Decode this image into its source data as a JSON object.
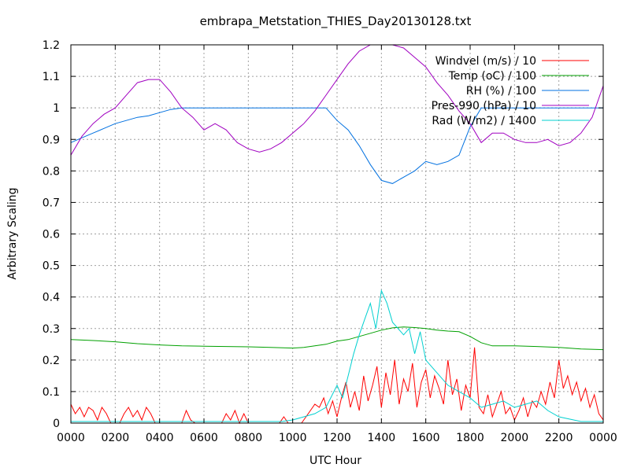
{
  "chart_data": {
    "type": "line",
    "title": "embrapa_Metstation_THIES_Day20130128.txt",
    "xlabel": "UTC Hour",
    "ylabel": "Arbitrary Scaling",
    "xlim": [
      0,
      24
    ],
    "ylim": [
      0,
      1.2
    ],
    "grid": true,
    "legend_position": "top-right",
    "x_ticks": [
      "0000",
      "0200",
      "0400",
      "0600",
      "0800",
      "1000",
      "1200",
      "1400",
      "1600",
      "1800",
      "2000",
      "2200",
      "0000"
    ],
    "y_ticks": [
      "0",
      "0.1",
      "0.2",
      "0.3",
      "0.4",
      "0.5",
      "0.6",
      "0.7",
      "0.8",
      "0.9",
      "1",
      "1.1",
      "1.2"
    ],
    "series": [
      {
        "name": "Windvel (m/s) / 10",
        "color": "#ff0000",
        "x": [
          0,
          0.2,
          0.4,
          0.6,
          0.8,
          1.0,
          1.2,
          1.4,
          1.6,
          1.8,
          2.0,
          2.2,
          2.4,
          2.6,
          2.8,
          3.0,
          3.2,
          3.4,
          3.6,
          3.8,
          4.0,
          4.2,
          4.4,
          4.6,
          4.8,
          5.0,
          5.2,
          5.4,
          5.6,
          5.8,
          6.0,
          6.2,
          6.4,
          6.6,
          6.8,
          7.0,
          7.2,
          7.4,
          7.6,
          7.8,
          8.0,
          8.2,
          8.4,
          8.6,
          8.8,
          9.0,
          9.2,
          9.4,
          9.6,
          9.8,
          10.0,
          10.2,
          10.4,
          10.6,
          10.8,
          11.0,
          11.2,
          11.4,
          11.6,
          11.8,
          12.0,
          12.2,
          12.4,
          12.6,
          12.8,
          13.0,
          13.2,
          13.4,
          13.6,
          13.8,
          14.0,
          14.2,
          14.4,
          14.6,
          14.8,
          15.0,
          15.2,
          15.4,
          15.6,
          15.8,
          16.0,
          16.2,
          16.4,
          16.6,
          16.8,
          17.0,
          17.2,
          17.4,
          17.6,
          17.8,
          18.0,
          18.2,
          18.4,
          18.6,
          18.8,
          19.0,
          19.2,
          19.4,
          19.6,
          19.8,
          20.0,
          20.2,
          20.4,
          20.6,
          20.8,
          21.0,
          21.2,
          21.4,
          21.6,
          21.8,
          22.0,
          22.2,
          22.4,
          22.6,
          22.8,
          23.0,
          23.2,
          23.4,
          23.6,
          23.8,
          24.0
        ],
        "y": [
          0.06,
          0.03,
          0.05,
          0.02,
          0.05,
          0.04,
          0.01,
          0.05,
          0.03,
          0.0,
          0.0,
          0.0,
          0.03,
          0.05,
          0.02,
          0.04,
          0.01,
          0.05,
          0.03,
          0.0,
          0.0,
          0.0,
          0.0,
          0.0,
          0.0,
          0.0,
          0.04,
          0.01,
          0.0,
          0.0,
          0.0,
          0.0,
          0.0,
          0.0,
          0.0,
          0.03,
          0.01,
          0.04,
          0.0,
          0.03,
          0.0,
          0.0,
          0.0,
          0.0,
          0.0,
          0.0,
          0.0,
          0.0,
          0.02,
          0.0,
          0.0,
          0.0,
          0.0,
          0.02,
          0.04,
          0.06,
          0.05,
          0.08,
          0.03,
          0.07,
          0.02,
          0.08,
          0.13,
          0.05,
          0.1,
          0.04,
          0.15,
          0.07,
          0.12,
          0.18,
          0.05,
          0.16,
          0.09,
          0.2,
          0.06,
          0.14,
          0.1,
          0.19,
          0.05,
          0.13,
          0.17,
          0.08,
          0.15,
          0.11,
          0.06,
          0.2,
          0.09,
          0.14,
          0.04,
          0.12,
          0.08,
          0.24,
          0.05,
          0.03,
          0.09,
          0.02,
          0.06,
          0.1,
          0.03,
          0.05,
          0.01,
          0.04,
          0.08,
          0.02,
          0.07,
          0.05,
          0.1,
          0.06,
          0.13,
          0.08,
          0.2,
          0.11,
          0.15,
          0.09,
          0.13,
          0.07,
          0.11,
          0.05,
          0.09,
          0.03,
          0.01
        ]
      },
      {
        "name": "Temp (oC) / 100",
        "color": "#00a000",
        "x": [
          0,
          1,
          2,
          3,
          4,
          5,
          6,
          7,
          8,
          9,
          10,
          10.5,
          11,
          11.5,
          12,
          12.5,
          13,
          13.5,
          14,
          14.5,
          15,
          15.5,
          16,
          16.5,
          17,
          17.5,
          18,
          18.5,
          19,
          20,
          21,
          22,
          23,
          24
        ],
        "y": [
          0.265,
          0.262,
          0.258,
          0.252,
          0.248,
          0.245,
          0.244,
          0.243,
          0.242,
          0.24,
          0.238,
          0.24,
          0.245,
          0.25,
          0.26,
          0.265,
          0.275,
          0.285,
          0.295,
          0.302,
          0.305,
          0.303,
          0.3,
          0.295,
          0.292,
          0.29,
          0.275,
          0.255,
          0.245,
          0.245,
          0.243,
          0.24,
          0.235,
          0.233
        ]
      },
      {
        "name": "RH (%) / 100",
        "color": "#0070e0",
        "x": [
          0,
          0.5,
          1,
          1.5,
          2,
          2.5,
          3,
          3.5,
          4,
          4.5,
          5,
          6,
          7,
          8,
          9,
          10,
          11,
          11.5,
          12,
          12.5,
          13,
          13.5,
          14,
          14.5,
          15,
          15.5,
          16,
          16.5,
          17,
          17.5,
          18,
          18.5,
          19,
          20,
          21,
          22,
          23,
          24
        ],
        "y": [
          0.89,
          0.905,
          0.92,
          0.935,
          0.95,
          0.96,
          0.97,
          0.975,
          0.985,
          0.995,
          1.0,
          1.0,
          1.0,
          1.0,
          1.0,
          1.0,
          1.0,
          1.0,
          0.96,
          0.93,
          0.88,
          0.82,
          0.77,
          0.76,
          0.78,
          0.8,
          0.83,
          0.82,
          0.83,
          0.85,
          0.94,
          1.0,
          1.0,
          1.0,
          1.0,
          1.0,
          1.0,
          1.0
        ]
      },
      {
        "name": "Pres-990 (hPa) / 10",
        "color": "#a000c0",
        "x": [
          0,
          0.5,
          1,
          1.5,
          2,
          2.5,
          3,
          3.5,
          4,
          4.5,
          5,
          5.5,
          6,
          6.5,
          7,
          7.5,
          8,
          8.5,
          9,
          9.5,
          10,
          10.5,
          11,
          11.5,
          12,
          12.5,
          13,
          13.5,
          14,
          14.5,
          15,
          15.5,
          16,
          16.5,
          17,
          17.5,
          18,
          18.5,
          19,
          19.5,
          20,
          20.5,
          21,
          21.5,
          22,
          22.5,
          23,
          23.5,
          24
        ],
        "y": [
          0.85,
          0.91,
          0.95,
          0.98,
          1.0,
          1.04,
          1.08,
          1.09,
          1.09,
          1.05,
          1.0,
          0.97,
          0.93,
          0.95,
          0.93,
          0.89,
          0.87,
          0.86,
          0.87,
          0.89,
          0.92,
          0.95,
          0.99,
          1.04,
          1.09,
          1.14,
          1.18,
          1.2,
          1.2,
          1.2,
          1.19,
          1.16,
          1.13,
          1.08,
          1.04,
          0.99,
          0.95,
          0.89,
          0.92,
          0.92,
          0.9,
          0.89,
          0.89,
          0.9,
          0.88,
          0.89,
          0.92,
          0.97,
          1.07
        ]
      },
      {
        "name": "Rad (W/m2) / 1400",
        "color": "#00d0d0",
        "x": [
          0,
          1,
          2,
          3,
          4,
          5,
          6,
          7,
          8,
          9,
          9.5,
          10,
          10.5,
          11,
          11.5,
          12,
          12.25,
          12.5,
          12.75,
          13,
          13.25,
          13.5,
          13.75,
          14,
          14.25,
          14.5,
          14.75,
          15,
          15.25,
          15.5,
          15.75,
          16,
          16.5,
          17,
          17.5,
          18,
          18.5,
          19,
          19.5,
          20,
          20.5,
          21,
          21.5,
          22,
          23,
          24
        ],
        "y": [
          0.005,
          0.005,
          0.005,
          0.005,
          0.005,
          0.005,
          0.005,
          0.005,
          0.005,
          0.005,
          0.005,
          0.01,
          0.02,
          0.03,
          0.05,
          0.12,
          0.08,
          0.15,
          0.22,
          0.28,
          0.33,
          0.38,
          0.3,
          0.42,
          0.38,
          0.32,
          0.3,
          0.28,
          0.3,
          0.22,
          0.29,
          0.2,
          0.16,
          0.12,
          0.1,
          0.08,
          0.05,
          0.06,
          0.07,
          0.05,
          0.06,
          0.07,
          0.04,
          0.02,
          0.005,
          0.005
        ]
      }
    ]
  }
}
